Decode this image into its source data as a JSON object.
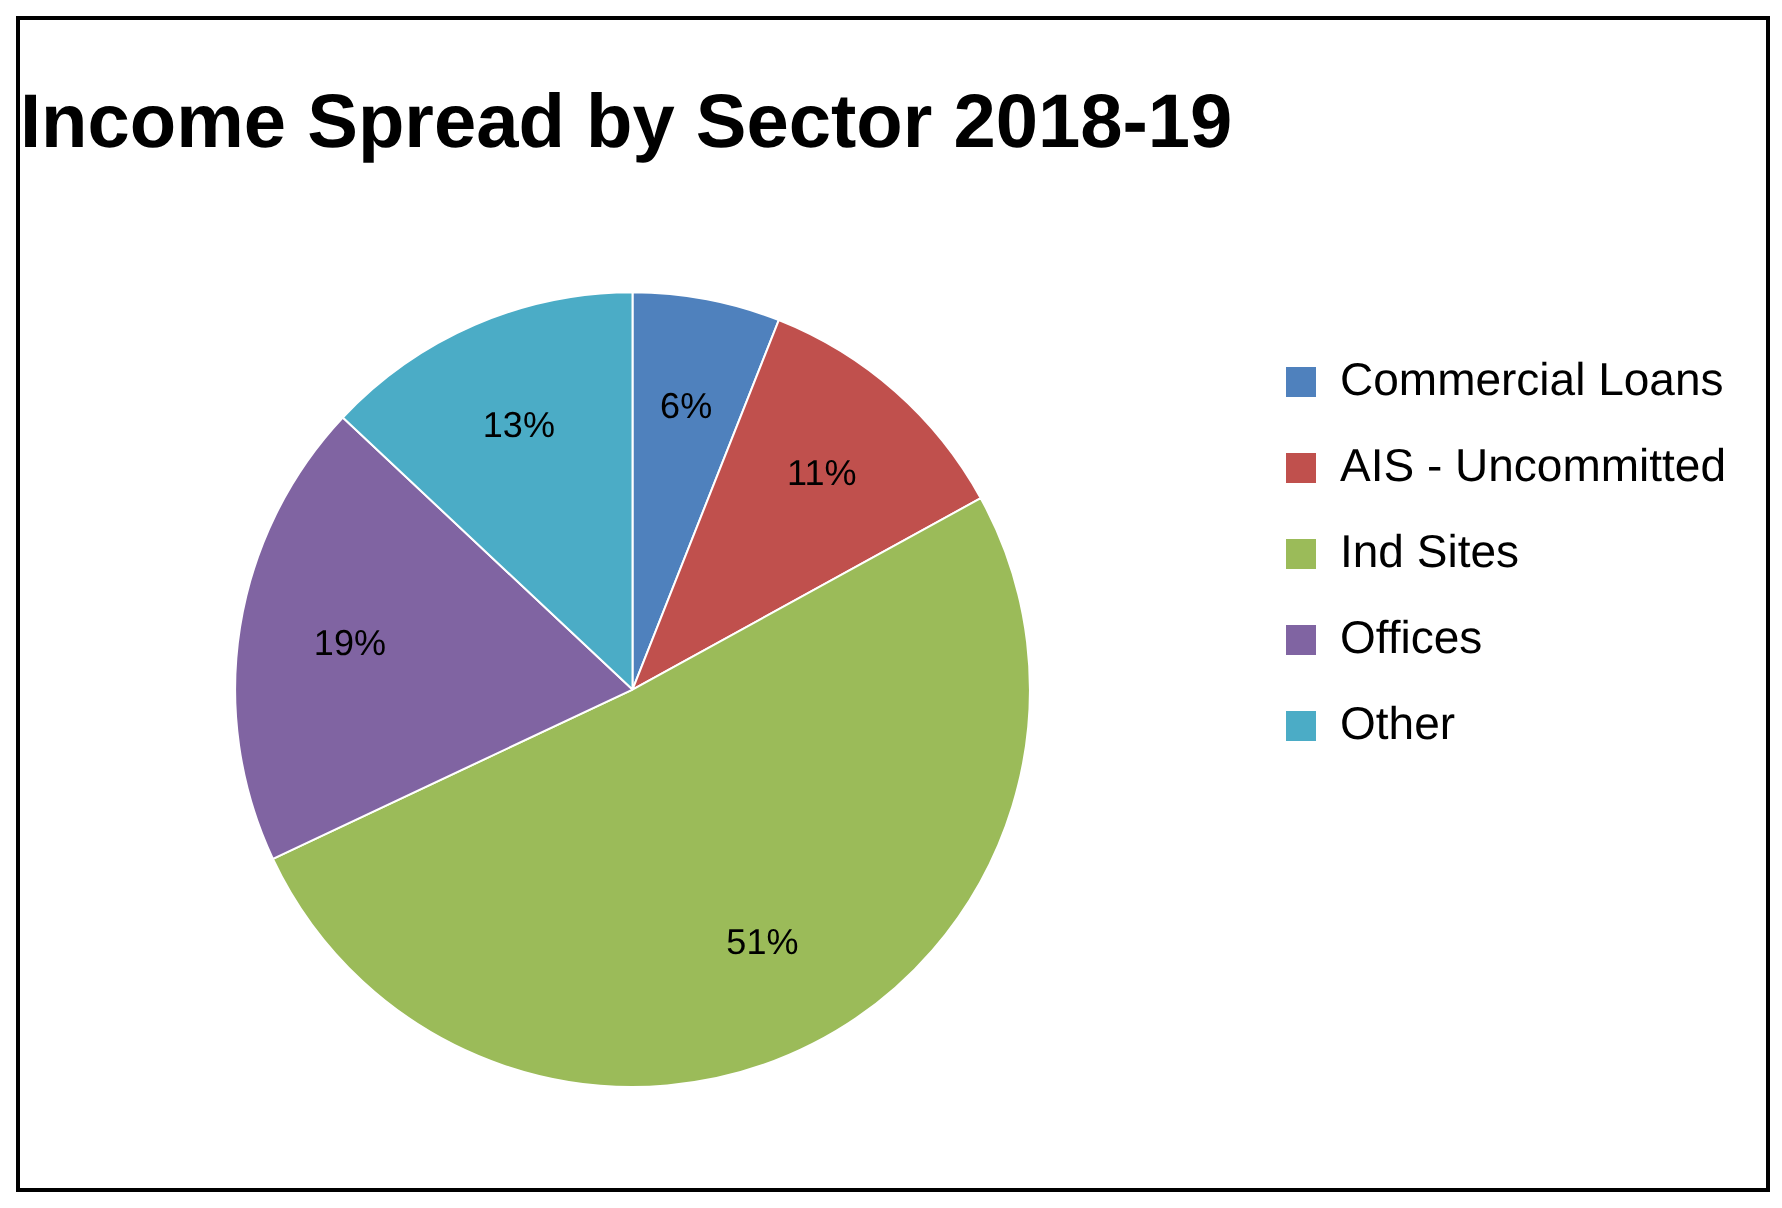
{
  "chart_data": {
    "type": "pie",
    "title": "Income Spread by Sector 2018-19",
    "categories": [
      "Commercial Loans",
      "AIS - Uncommitted",
      "Ind Sites",
      "Offices",
      "Other"
    ],
    "values": [
      6,
      11,
      51,
      19,
      13
    ],
    "colors": [
      "#4f81bd",
      "#c0504d",
      "#9bbb59",
      "#8064a2",
      "#4bacc6"
    ],
    "value_labels": [
      "6%",
      "11%",
      "51%",
      "19%",
      "13%"
    ],
    "legend": "right"
  }
}
